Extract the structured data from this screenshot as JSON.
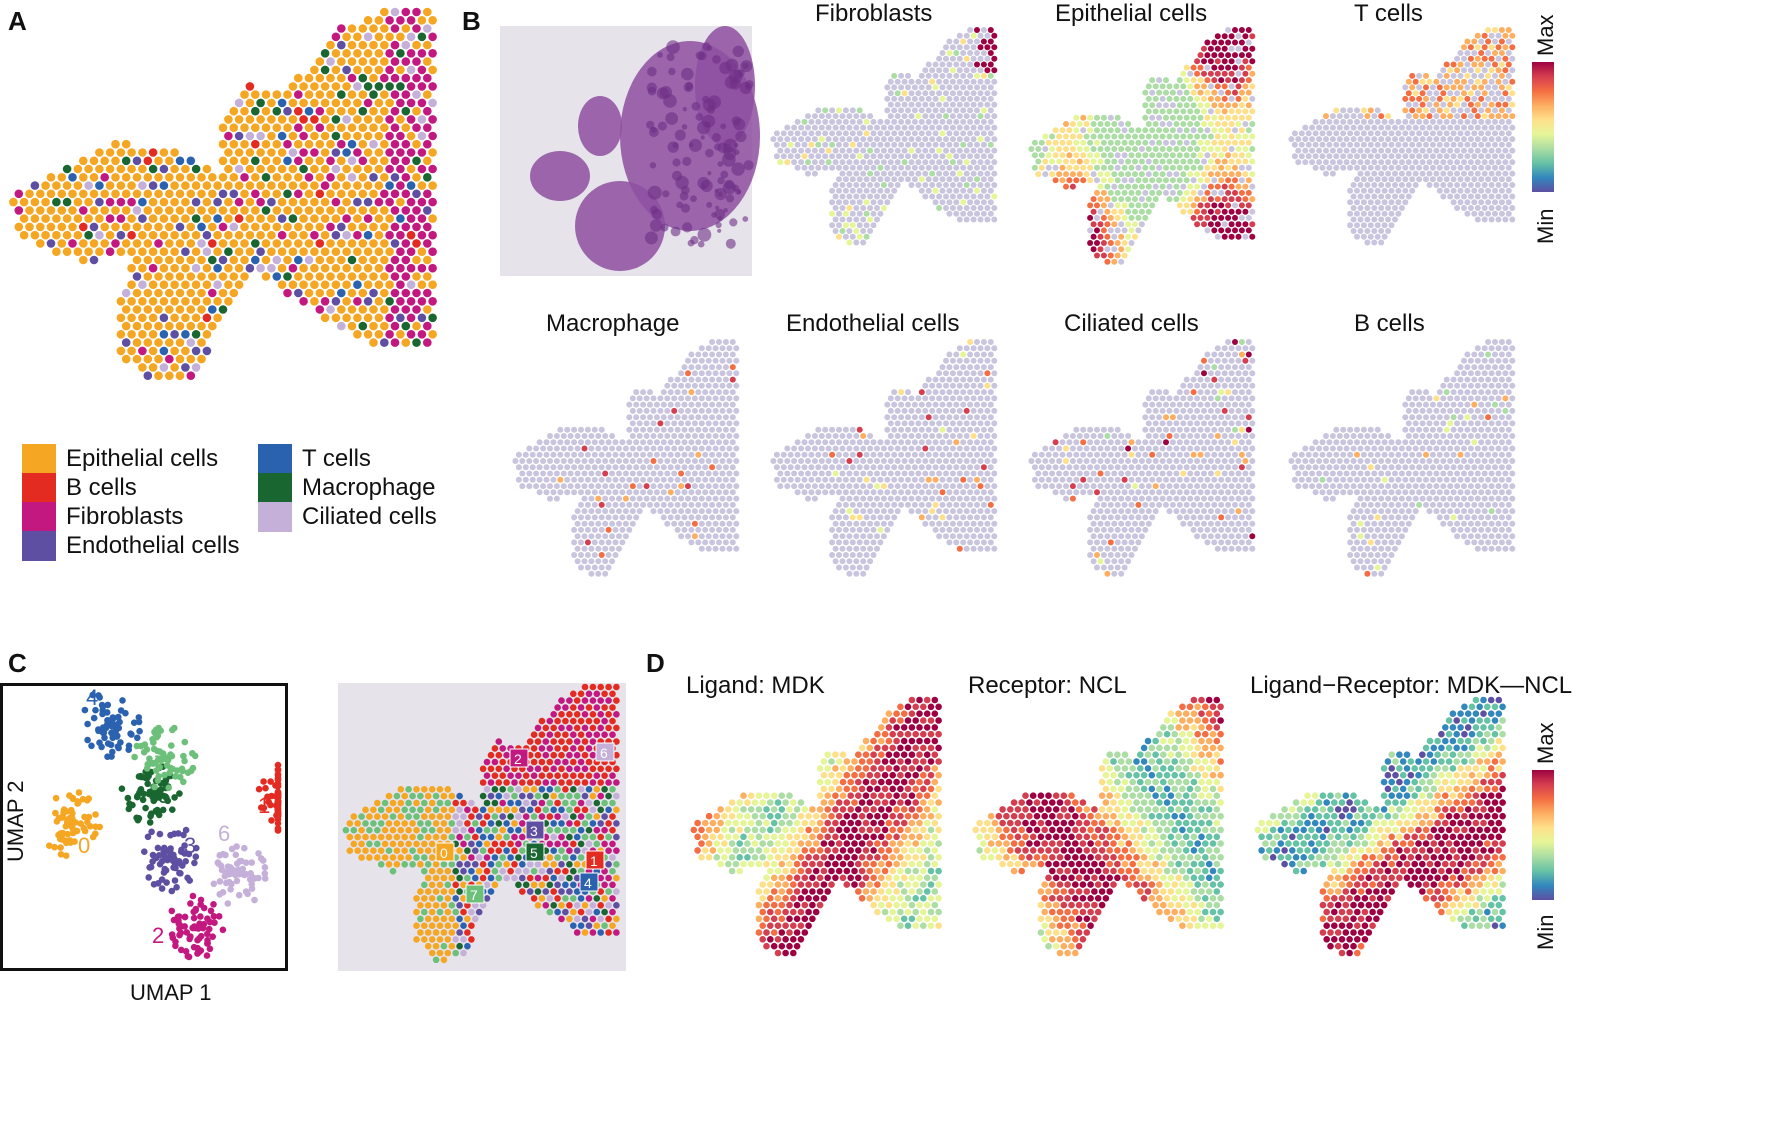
{
  "panels": {
    "A": {
      "label": "A",
      "legend": [
        {
          "name": "Epithelial cells",
          "color": "#F5A623"
        },
        {
          "name": "B cells",
          "color": "#E32B22"
        },
        {
          "name": "Fibroblasts",
          "color": "#C3187F"
        },
        {
          "name": "Endothelial cells",
          "color": "#5E4FA2"
        },
        {
          "name": "T cells",
          "color": "#2B62B0"
        },
        {
          "name": "Macrophage",
          "color": "#1A6630"
        },
        {
          "name": "Ciliated cells",
          "color": "#C4B0D8"
        }
      ]
    },
    "B": {
      "label": "B",
      "titles": [
        "Fibroblasts",
        "Epithelial cells",
        "T cells",
        "Macrophage",
        "Endothelial cells",
        "Ciliated cells",
        "B cells"
      ],
      "colorbar": {
        "max_label": "Max",
        "min_label": "Min"
      }
    },
    "C": {
      "label": "C",
      "xlabel": "UMAP 1",
      "ylabel": "UMAP 2",
      "clusters": [
        {
          "id": "0",
          "color": "#F5A623"
        },
        {
          "id": "1",
          "color": "#E32B22"
        },
        {
          "id": "2",
          "color": "#C3187F"
        },
        {
          "id": "3",
          "color": "#5E4FA2"
        },
        {
          "id": "4",
          "color": "#2B62B0"
        },
        {
          "id": "5",
          "color": "#1A6630"
        },
        {
          "id": "6",
          "color": "#C4B0D8"
        },
        {
          "id": "7",
          "color": "#6CC07A"
        }
      ]
    },
    "D": {
      "label": "D",
      "titles": [
        "Ligand: MDK",
        "Receptor: NCL",
        "Ligand−Receptor: MDK—NCL"
      ],
      "colorbar": {
        "max_label": "Max",
        "min_label": "Min"
      }
    }
  }
}
